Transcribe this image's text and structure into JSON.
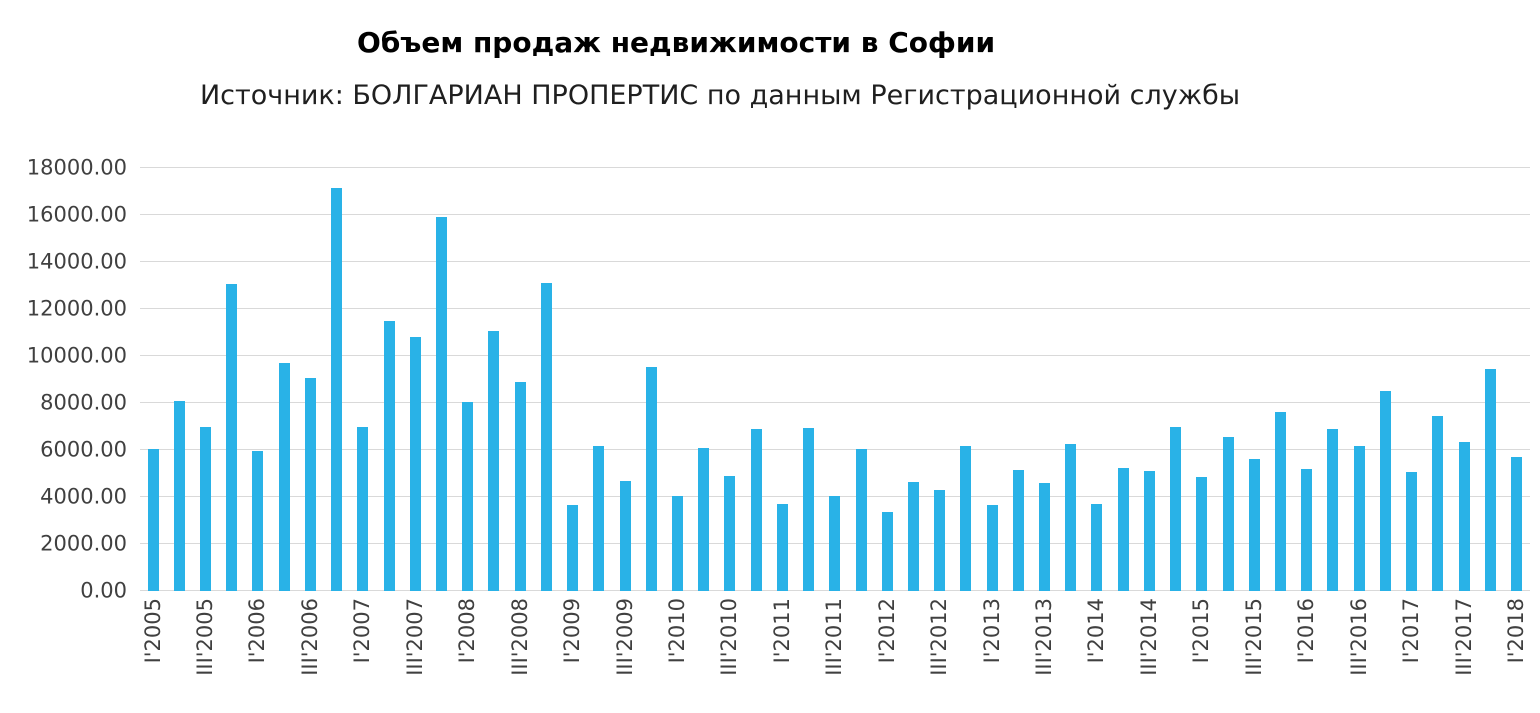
{
  "chart_data": {
    "type": "bar",
    "title": "Объем продаж недвижимости в Софии",
    "subtitle": "Источник: БОЛГАРИАН ПРОПЕРТИС по данным Регистрационной службы",
    "xlabel": "",
    "ylabel": "",
    "ylim": [
      0,
      18000
    ],
    "ytick_interval": 2000,
    "ytick_labels": [
      "0.00",
      "2000.00",
      "4000.00",
      "6000.00",
      "8000.00",
      "10000.00",
      "12000.00",
      "14000.00",
      "16000.00",
      "18000.00"
    ],
    "tick_labels": [
      "I'2005",
      "III'2005",
      "I'2006",
      "III'2006",
      "I'2007",
      "III'2007",
      "I'2008",
      "III'2008",
      "I'2009",
      "III'2009",
      "I'2010",
      "III'2010",
      "I'2011",
      "III'2011",
      "I'2012",
      "III'2012",
      "I'2013",
      "III'2013",
      "I'2014",
      "III'2014",
      "I'2015",
      "III'2015",
      "I'2016",
      "III'2016",
      "I'2017",
      "III'2017",
      "I'2018"
    ],
    "label_every": 2,
    "values": [
      6050,
      8100,
      7000,
      13050,
      5950,
      9700,
      9050,
      17150,
      7000,
      11500,
      10800,
      15900,
      8050,
      11050,
      8900,
      13100,
      3650,
      6150,
      4700,
      9550,
      4050,
      6100,
      4900,
      6900,
      3700,
      6950,
      4050,
      6050,
      3350,
      4650,
      4300,
      6150,
      3650,
      5150,
      4600,
      6250,
      3700,
      5250,
      5100,
      7000,
      4850,
      6550,
      5600,
      7600,
      5200,
      6900,
      6150,
      8500,
      5050,
      7450,
      6350,
      9450,
      5700
    ],
    "grid": "horizontal",
    "legend": "none",
    "bar_color": "#29b2e7",
    "gridline_color": "#d9d9d9",
    "axis_text_color": "#404040"
  }
}
